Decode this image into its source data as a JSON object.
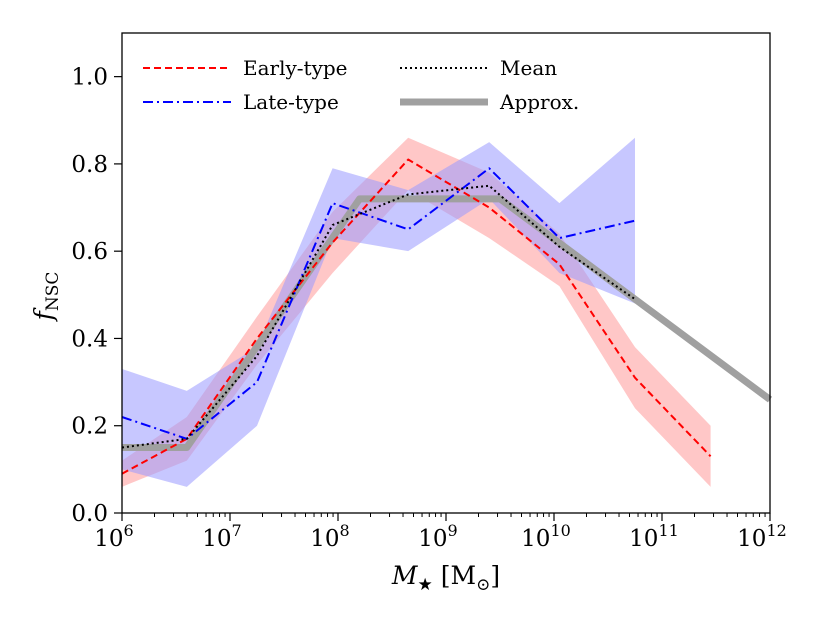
{
  "chart_data": {
    "type": "line",
    "title": "",
    "xscale": "log",
    "xlim": [
      1000000,
      1000000000000
    ],
    "ylim": [
      0.0,
      1.1
    ],
    "grid": false,
    "legend_position": "top-left",
    "xlabel": {
      "symbol": "M",
      "subscript": "★",
      "unit": "[M",
      "unit_sub": "⊙",
      "unit_close": "]"
    },
    "ylabel": {
      "symbol": "f",
      "subscript": "NSC"
    },
    "xticks": [
      {
        "base": "10",
        "exp": "6",
        "value": 1000000
      },
      {
        "base": "10",
        "exp": "7",
        "value": 10000000
      },
      {
        "base": "10",
        "exp": "8",
        "value": 100000000
      },
      {
        "base": "10",
        "exp": "9",
        "value": 1000000000
      },
      {
        "base": "10",
        "exp": "10",
        "value": 10000000000
      },
      {
        "base": "10",
        "exp": "11",
        "value": 100000000000
      },
      {
        "base": "10",
        "exp": "12",
        "value": 1000000000000
      }
    ],
    "yticks": [
      {
        "label": "0.0",
        "value": 0.0
      },
      {
        "label": "0.2",
        "value": 0.2
      },
      {
        "label": "0.4",
        "value": 0.4
      },
      {
        "label": "0.6",
        "value": 0.6
      },
      {
        "label": "0.8",
        "value": 0.8
      },
      {
        "label": "1.0",
        "value": 1.0
      }
    ],
    "series": [
      {
        "name": "Early-type",
        "style": "dashed",
        "color": "#ff0000",
        "band_color": "#ff9999",
        "log_x": [
          6.0,
          6.6,
          7.25,
          7.95,
          8.65,
          9.4,
          10.05,
          10.75,
          11.45
        ],
        "y": [
          0.09,
          0.17,
          0.4,
          0.62,
          0.81,
          0.7,
          0.57,
          0.31,
          0.13
        ],
        "y_low": [
          0.06,
          0.12,
          0.34,
          0.55,
          0.74,
          0.63,
          0.52,
          0.24,
          0.06
        ],
        "y_high": [
          0.12,
          0.22,
          0.45,
          0.69,
          0.86,
          0.78,
          0.64,
          0.38,
          0.2
        ]
      },
      {
        "name": "Late-type",
        "style": "dashdot",
        "color": "#0000ff",
        "band_color": "#9999ff",
        "log_x": [
          6.0,
          6.6,
          7.25,
          7.95,
          8.65,
          9.4,
          10.05,
          10.75
        ],
        "y": [
          0.22,
          0.17,
          0.3,
          0.71,
          0.65,
          0.79,
          0.63,
          0.67
        ],
        "y_low": [
          0.1,
          0.06,
          0.2,
          0.63,
          0.6,
          0.72,
          0.55,
          0.48
        ],
        "y_high": [
          0.33,
          0.28,
          0.38,
          0.79,
          0.74,
          0.85,
          0.71,
          0.86
        ]
      },
      {
        "name": "Mean",
        "style": "dotted",
        "color": "#000000",
        "log_x": [
          6.0,
          6.6,
          7.25,
          7.95,
          8.65,
          9.4,
          10.05,
          10.75
        ],
        "y": [
          0.15,
          0.17,
          0.36,
          0.66,
          0.73,
          0.75,
          0.61,
          0.49
        ]
      },
      {
        "name": "Approx.",
        "style": "solid-thick",
        "color": "#a0a0a0",
        "log_x": [
          6.0,
          6.6,
          8.2,
          9.5,
          12.0
        ],
        "y": [
          0.15,
          0.15,
          0.72,
          0.72,
          0.26
        ]
      }
    ]
  }
}
